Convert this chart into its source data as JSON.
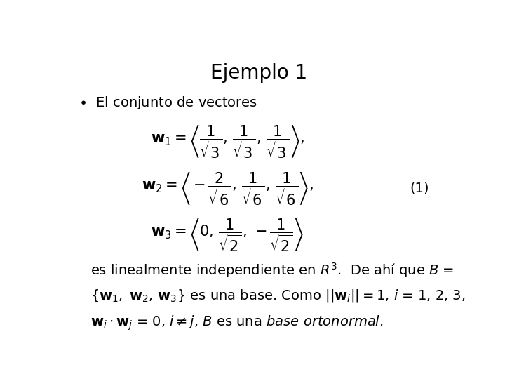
{
  "title": "Ejemplo 1",
  "background_color": "#ffffff",
  "text_color": "#000000",
  "title_fontsize": 20,
  "body_fontsize": 14,
  "math_fontsize": 15,
  "label_eq": "(1)"
}
